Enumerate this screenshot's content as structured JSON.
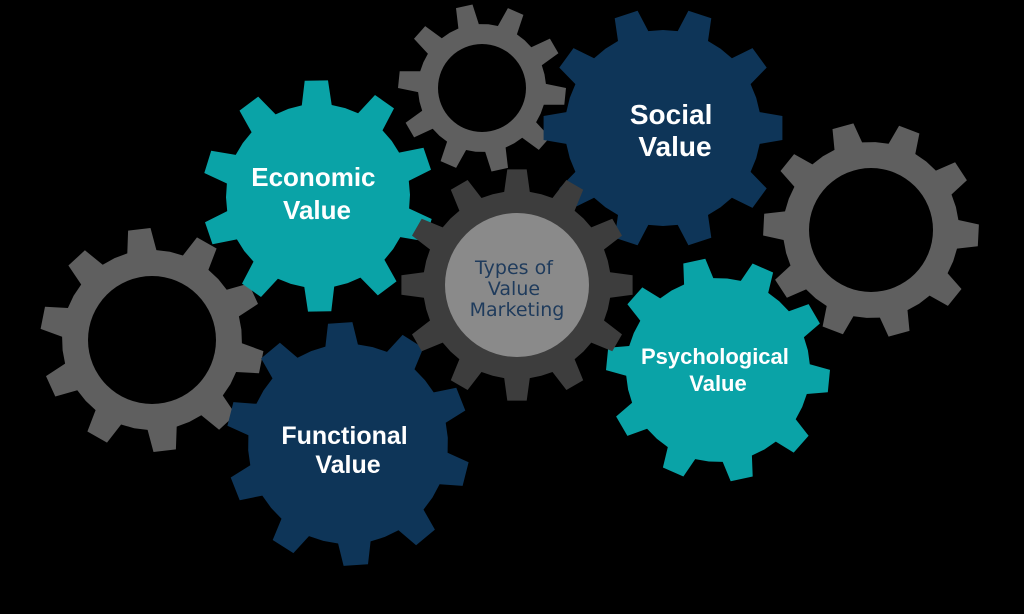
{
  "diagram": {
    "center": {
      "lines": [
        "Types of",
        "Value",
        "Marketing"
      ]
    },
    "labeled_gears": [
      {
        "key": "economic",
        "lines": [
          "Economic",
          "Value"
        ]
      },
      {
        "key": "social",
        "lines": [
          "Social",
          "Value"
        ]
      },
      {
        "key": "functional",
        "lines": [
          "Functional",
          "Value"
        ]
      },
      {
        "key": "psychological",
        "lines": [
          "Psychological",
          "Value"
        ]
      }
    ],
    "colors": {
      "background": "#000000",
      "teal": "#0aa3a7",
      "navy": "#0e3558",
      "dark_gray": "#3d3d3d",
      "mid_gray": "#5f5f5f",
      "hub_gray": "#8a8a8a",
      "center_text": "#1f3b5c",
      "label_text": "#ffffff"
    }
  }
}
